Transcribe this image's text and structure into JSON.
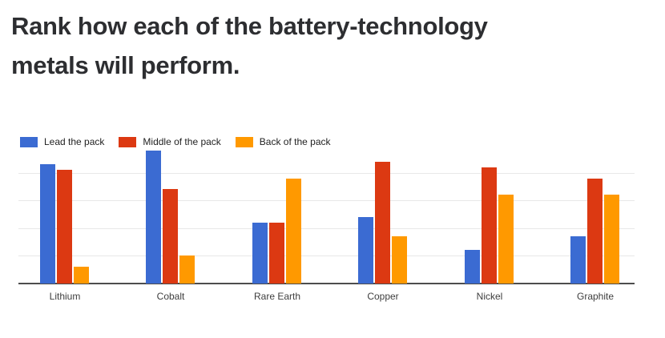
{
  "title": {
    "line1": "Rank how each of the battery-technology",
    "line2": "metals will perform."
  },
  "chart_data": {
    "type": "bar",
    "title": "Rank how each of the battery-technology metals will perform.",
    "categories": [
      "Lithium",
      "Cobalt",
      "Rare Earth",
      "Copper",
      "Nickel",
      "Graphite"
    ],
    "series": [
      {
        "name": "Lead the pack",
        "color": "#3B6BD2",
        "values": [
          43,
          48,
          22,
          24,
          12,
          17
        ]
      },
      {
        "name": "Middle of the pack",
        "color": "#DC3912",
        "values": [
          41,
          34,
          22,
          44,
          42,
          38
        ]
      },
      {
        "name": "Back of the pack",
        "color": "#FF9900",
        "values": [
          6,
          10,
          38,
          17,
          32,
          32
        ]
      }
    ],
    "xlabel": "",
    "ylabel": "",
    "ylim": [
      0,
      50
    ],
    "gridline_step": 10,
    "y_axis_labels_visible": false,
    "grid": true,
    "legend_position": "top"
  }
}
